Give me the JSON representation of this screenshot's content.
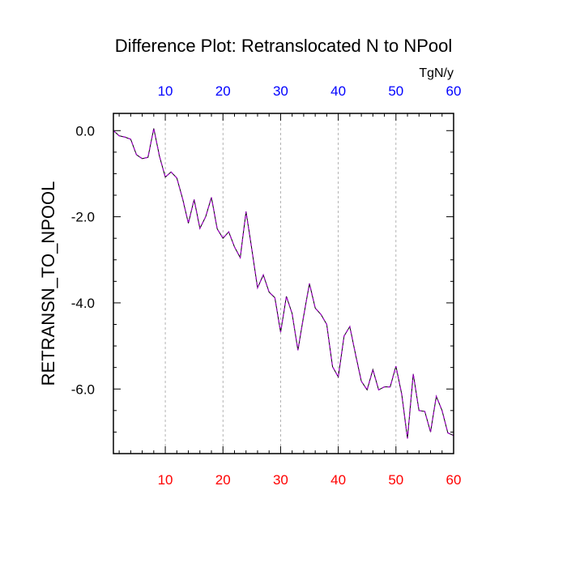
{
  "chart_data": {
    "type": "line",
    "title": "Difference Plot: Retranslocated N to NPool",
    "units_label": "TgN/y",
    "ylabel": "RETRANSN_TO_NPOOL",
    "xlabel": "",
    "xlim": [
      1,
      60
    ],
    "ylim": [
      -7.5,
      0.4
    ],
    "x_ticks": [
      10,
      20,
      30,
      40,
      50,
      60
    ],
    "x_tick_labels": [
      "10",
      "20",
      "30",
      "40",
      "50",
      "60"
    ],
    "y_ticks": [
      0,
      -2,
      -4,
      -6
    ],
    "y_tick_labels": [
      "0.0",
      "-2.0",
      "-4.0",
      "-6.0"
    ],
    "grid": "vertical-dashed",
    "bottom_axis_color": "#ff0000",
    "top_axis_color": "#0000ff",
    "line_colors": [
      "#000000",
      "#a000c8"
    ],
    "x": [
      1,
      2,
      3,
      4,
      5,
      6,
      7,
      8,
      9,
      10,
      11,
      12,
      13,
      14,
      15,
      16,
      17,
      18,
      19,
      20,
      21,
      22,
      23,
      24,
      25,
      26,
      27,
      28,
      29,
      30,
      31,
      32,
      33,
      34,
      35,
      36,
      37,
      38,
      39,
      40,
      41,
      42,
      43,
      44,
      45,
      46,
      47,
      48,
      49,
      50,
      51,
      52,
      53,
      54,
      55,
      56,
      57,
      58,
      59,
      60
    ],
    "y": [
      0.0,
      -0.12,
      -0.15,
      -0.2,
      -0.56,
      -0.65,
      -0.62,
      0.05,
      -0.6,
      -1.08,
      -0.96,
      -1.1,
      -1.58,
      -2.15,
      -1.6,
      -2.27,
      -2.0,
      -1.55,
      -2.28,
      -2.5,
      -2.35,
      -2.7,
      -2.95,
      -1.88,
      -2.75,
      -3.65,
      -3.35,
      -3.75,
      -3.88,
      -4.68,
      -3.85,
      -4.25,
      -5.1,
      -4.3,
      -3.55,
      -4.12,
      -4.27,
      -4.5,
      -5.48,
      -5.72,
      -4.77,
      -4.55,
      -5.2,
      -5.82,
      -6.02,
      -5.55,
      -6.02,
      -5.95,
      -5.95,
      -5.47,
      -6.12,
      -7.15,
      -5.65,
      -6.5,
      -6.52,
      -7.0,
      -6.17,
      -6.5,
      -7.02,
      -7.08
    ]
  }
}
